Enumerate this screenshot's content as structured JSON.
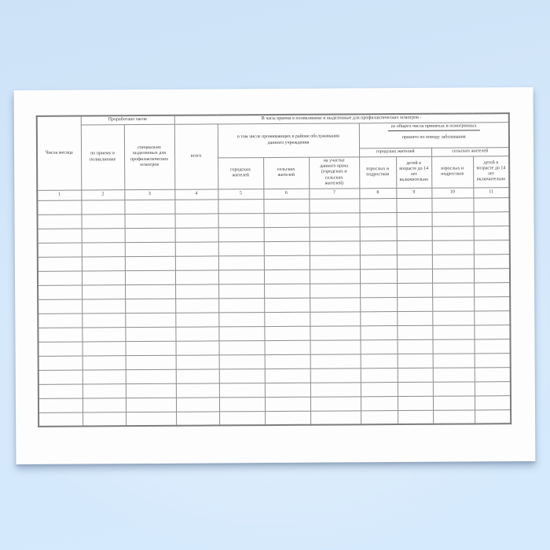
{
  "table": {
    "header": {
      "days": "Числа месяца",
      "worked_hours_group": "Проработано часов",
      "reception_in_polyclinic": "по приему в поликлинике",
      "allocated_for_preventive": "специально выделенных для профилактических осмотров",
      "reception_hours_group": "В часы приема в поликлинике и выделенные для профилактических осмотров -",
      "total": "всего",
      "service_area_group": "в том числе проживающих в районе обслуживания данного учреждения",
      "urban_residents": "городских жителей",
      "rural_residents": "сельских жителей",
      "doctor_precinct": "на участке данного врача (городских и сельских жителей)",
      "of_total_examined": "из общего числа принятых и осмотренных",
      "disease_reason": "принято по поводу заболевания",
      "urban_group": "городских жителей",
      "rural_group": "сельских жителей",
      "adults_teens_urban": "взрослых и подростков",
      "children_14_urban": "детей в возрасте до 14 лет включительно",
      "adults_teens_rural": "взрослых и подростков",
      "children_14_rural": "детей в возрасте до 14 лет включительно"
    },
    "column_numbers": [
      "1",
      "2",
      "3",
      "4",
      "5",
      "6",
      "7",
      "8",
      "9",
      "10",
      "11"
    ],
    "empty_row_count": 16
  },
  "colors": {
    "background_blue": "#d5e8fb",
    "paper": "#fdfdfd",
    "grid_border": "#8d8d8d",
    "text": "#3a3a3a"
  }
}
